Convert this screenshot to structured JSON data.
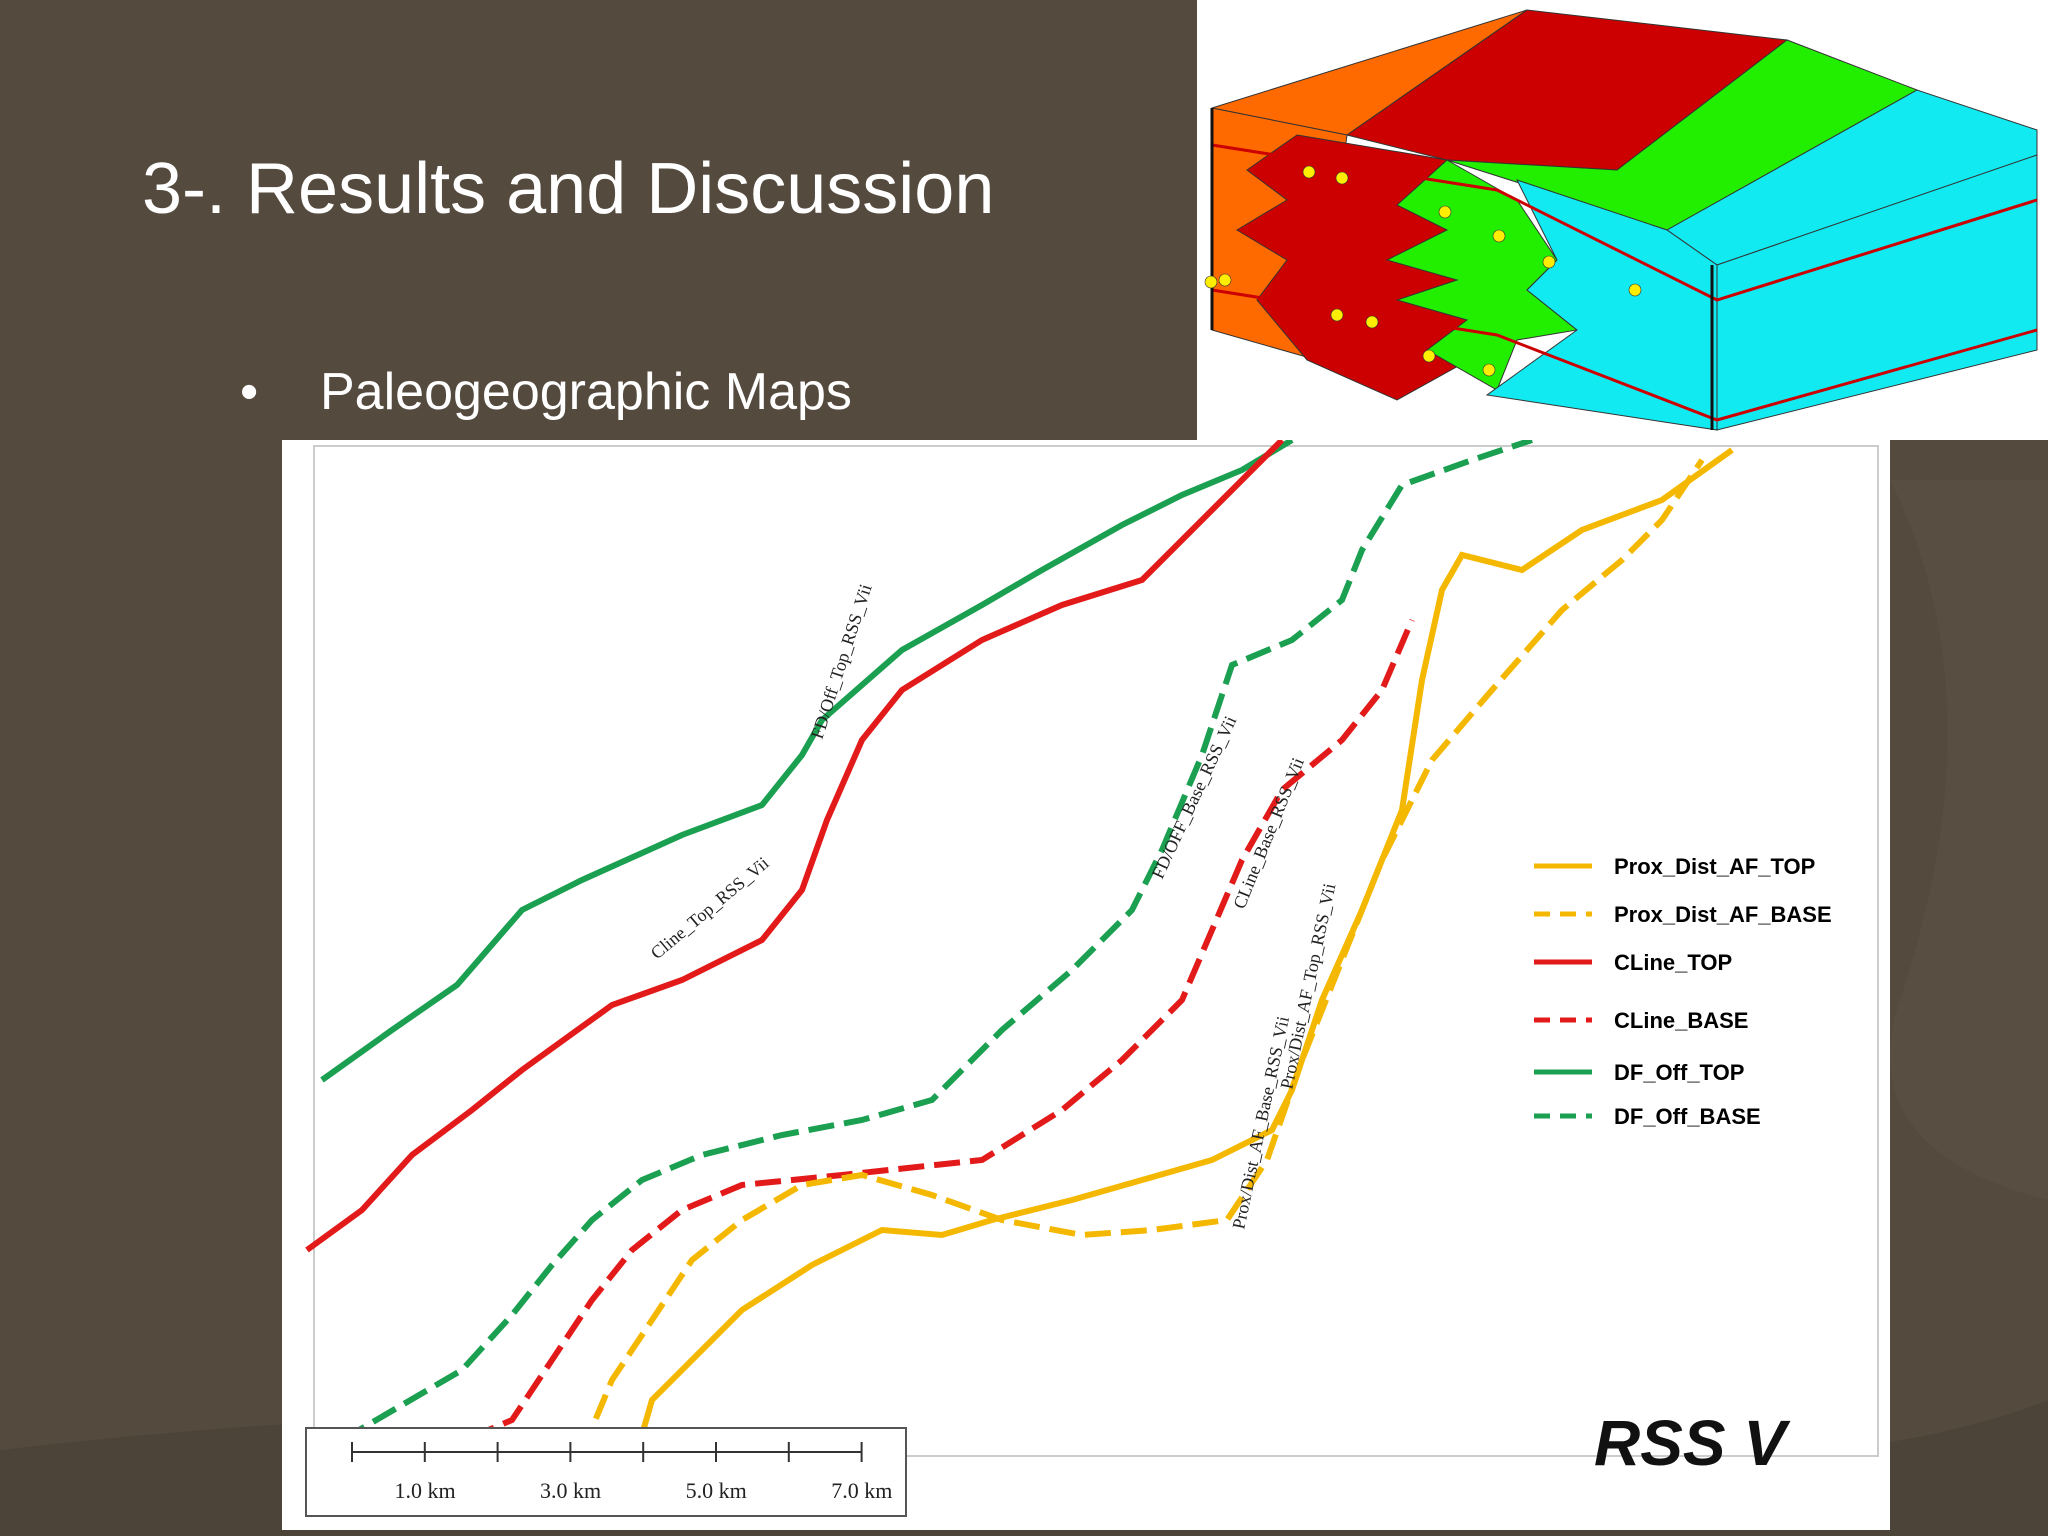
{
  "slide": {
    "title": "3-. Results and Discussion",
    "bullet_marker": "•",
    "bullet_text": "Paleogeographic Maps"
  },
  "map": {
    "panel_label": "RSS V",
    "legend": [
      {
        "name": "Prox_Dist_AF_TOP",
        "color": "#f5b800",
        "style": "solid"
      },
      {
        "name": "Prox_Dist_AF_BASE",
        "color": "#f5b800",
        "style": "dashed"
      },
      {
        "name": "CLine_TOP",
        "color": "#e31a1a",
        "style": "solid"
      },
      {
        "name": "CLine_BASE",
        "color": "#e31a1a",
        "style": "dashed"
      },
      {
        "name": "DF_Off_TOP",
        "color": "#1aa050",
        "style": "solid"
      },
      {
        "name": "DF_Off_BASE",
        "color": "#1aa050",
        "style": "dashed"
      }
    ],
    "line_labels": {
      "fd_off_top": "FD/Off_Top_RSS_Vii",
      "cline_top": "Cline_Top_RSS_Vii",
      "fd_off_base": "FD/OFF_Base_RSS_Vii",
      "cline_base": "CLine_Base_RSS_Vii",
      "prox_top": "Prox/Dist_AF_Top_RSS_Vii",
      "prox_base": "Prox/Dist_AF_Base_RSS_Vii"
    },
    "scale_bar": [
      "1.0 km",
      "3.0 km",
      "5.0 km",
      "7.0 km"
    ]
  },
  "block_diagram": {
    "colors": {
      "orange": "#ff6a00",
      "red": "#cc0000",
      "green": "#22ee00",
      "cyan": "#11eaf0"
    }
  }
}
